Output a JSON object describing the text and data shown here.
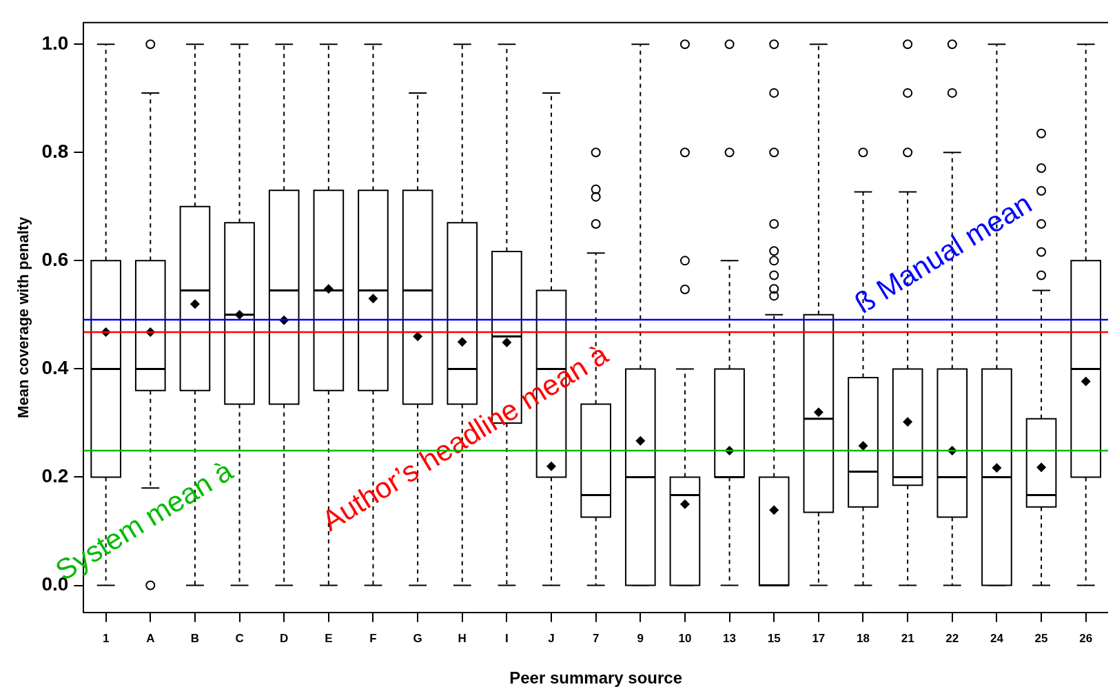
{
  "chart_data": {
    "type": "box",
    "xlabel": "Peer summary source",
    "ylabel": "Mean coverage with penalty",
    "categories": [
      "1",
      "A",
      "B",
      "C",
      "D",
      "E",
      "F",
      "G",
      "H",
      "I",
      "J",
      "7",
      "9",
      "10",
      "13",
      "15",
      "17",
      "18",
      "21",
      "22",
      "24",
      "25",
      "26"
    ],
    "boxes": [
      {
        "low": 0,
        "q1": 0.2,
        "median": 0.4,
        "q3": 0.6,
        "high": 1.0,
        "mean": 0.468
      },
      {
        "low": 0.18,
        "q1": 0.36,
        "median": 0.4,
        "q3": 0.6,
        "high": 0.91,
        "mean": 0.468,
        "outliers": [
          1.0,
          0
        ]
      },
      {
        "low": 0,
        "q1": 0.36,
        "median": 0.545,
        "q3": 0.7,
        "high": 1.0,
        "mean": 0.52
      },
      {
        "low": 0,
        "q1": 0.335,
        "median": 0.5,
        "q3": 0.67,
        "high": 1.0,
        "mean": 0.5
      },
      {
        "low": 0,
        "q1": 0.335,
        "median": 0.545,
        "q3": 0.73,
        "high": 1.0,
        "mean": 0.49
      },
      {
        "low": 0,
        "q1": 0.36,
        "median": 0.545,
        "q3": 0.73,
        "high": 1.0,
        "mean": 0.548
      },
      {
        "low": 0,
        "q1": 0.36,
        "median": 0.545,
        "q3": 0.73,
        "high": 1.0,
        "mean": 0.53
      },
      {
        "low": 0,
        "q1": 0.335,
        "median": 0.545,
        "q3": 0.73,
        "high": 0.91,
        "mean": 0.46
      },
      {
        "low": 0,
        "q1": 0.335,
        "median": 0.4,
        "q3": 0.67,
        "high": 1.0,
        "mean": 0.45
      },
      {
        "low": 0,
        "q1": 0.3,
        "median": 0.46,
        "q3": 0.617,
        "high": 1.0,
        "mean": 0.449
      },
      {
        "low": 0,
        "q1": 0.2,
        "median": 0.4,
        "q3": 0.545,
        "high": 0.91,
        "mean": 0.22
      },
      {
        "low": 0,
        "q1": 0.126,
        "median": 0.167,
        "q3": 0.335,
        "high": 0.614,
        "outliers": [
          0.8,
          0.732,
          0.718,
          0.668
        ]
      },
      {
        "low": 0,
        "q1": 0,
        "median": 0.2,
        "q3": 0.4,
        "high": 1.0,
        "mean": 0.267
      },
      {
        "low": 0,
        "q1": 0,
        "median": 0.167,
        "q3": 0.2,
        "high": 0.4,
        "mean": 0.15,
        "outliers": [
          1.0,
          0.8,
          0.6,
          0.547
        ]
      },
      {
        "low": 0,
        "q1": 0.2,
        "median": 0.2,
        "q3": 0.4,
        "high": 0.6,
        "mean": 0.249,
        "outliers": [
          1.0,
          0.8
        ]
      },
      {
        "low": 0,
        "q1": 0,
        "median": 0,
        "q3": 0.2,
        "high": 0.5,
        "mean": 0.139,
        "outliers": [
          1.0,
          0.91,
          0.8,
          0.668,
          0.618,
          0.6,
          0.573,
          0.548,
          0.535
        ]
      },
      {
        "low": 0,
        "q1": 0.135,
        "median": 0.308,
        "q3": 0.5,
        "high": 1.0,
        "mean": 0.32
      },
      {
        "low": 0,
        "q1": 0.145,
        "median": 0.21,
        "q3": 0.384,
        "high": 0.727,
        "mean": 0.258,
        "outliers": [
          0.8
        ]
      },
      {
        "low": 0,
        "q1": 0.185,
        "median": 0.2,
        "q3": 0.4,
        "high": 0.727,
        "mean": 0.302,
        "outliers": [
          1.0,
          0.91,
          0.8
        ]
      },
      {
        "low": 0,
        "q1": 0.126,
        "median": 0.2,
        "q3": 0.4,
        "high": 0.8,
        "mean": 0.249,
        "outliers": [
          1.0,
          0.91
        ]
      },
      {
        "low": 0,
        "q1": 0,
        "median": 0.2,
        "q3": 0.4,
        "high": 1.0,
        "mean": 0.217
      },
      {
        "low": 0,
        "q1": 0.145,
        "median": 0.167,
        "q3": 0.308,
        "high": 0.545,
        "mean": 0.218,
        "outliers": [
          0.835,
          0.771,
          0.729,
          0.668,
          0.616,
          0.573
        ]
      },
      {
        "low": 0,
        "q1": 0.2,
        "median": 0.4,
        "q3": 0.6,
        "high": 1.0,
        "mean": 0.377
      }
    ],
    "ylim": [
      -0.05,
      1.04
    ],
    "yticks": [
      {
        "value": 0,
        "label": "0.0"
      },
      {
        "value": 0.2,
        "label": "0.2"
      },
      {
        "value": 0.4,
        "label": "0.4"
      },
      {
        "value": 0.6,
        "label": "0.6"
      },
      {
        "value": 0.8,
        "label": "0.8"
      },
      {
        "value": 1.0,
        "label": "1.0"
      }
    ],
    "ref_lines": [
      {
        "axis": "y",
        "value": 0.491,
        "label": "ß Manual mean",
        "color": "#0000ff"
      },
      {
        "axis": "y",
        "value": 0.468,
        "label": "Author’s headline mean à",
        "color": "#ff0000"
      },
      {
        "axis": "y",
        "value": 0.249,
        "label": "System mean à",
        "color": "#00bb00"
      }
    ],
    "grid": false,
    "legend": false
  }
}
